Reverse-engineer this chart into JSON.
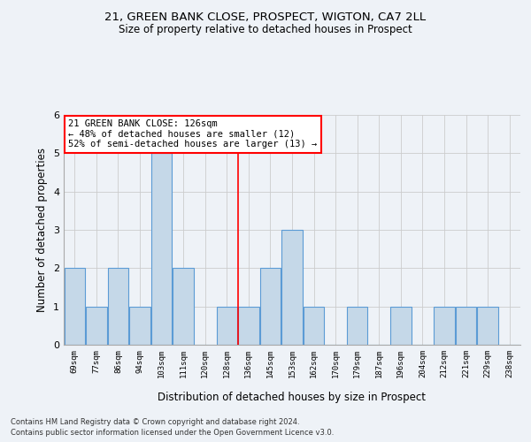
{
  "title1": "21, GREEN BANK CLOSE, PROSPECT, WIGTON, CA7 2LL",
  "title2": "Size of property relative to detached houses in Prospect",
  "xlabel": "Distribution of detached houses by size in Prospect",
  "ylabel": "Number of detached properties",
  "footer1": "Contains HM Land Registry data © Crown copyright and database right 2024.",
  "footer2": "Contains public sector information licensed under the Open Government Licence v3.0.",
  "annotation_title": "21 GREEN BANK CLOSE: 126sqm",
  "annotation_line1": "← 48% of detached houses are smaller (12)",
  "annotation_line2": "52% of semi-detached houses are larger (13) →",
  "bins": [
    "69sqm",
    "77sqm",
    "86sqm",
    "94sqm",
    "103sqm",
    "111sqm",
    "120sqm",
    "128sqm",
    "136sqm",
    "145sqm",
    "153sqm",
    "162sqm",
    "170sqm",
    "179sqm",
    "187sqm",
    "196sqm",
    "204sqm",
    "212sqm",
    "221sqm",
    "229sqm",
    "238sqm"
  ],
  "values": [
    2,
    1,
    2,
    1,
    5,
    2,
    0,
    1,
    1,
    2,
    3,
    1,
    0,
    1,
    0,
    1,
    0,
    1,
    1,
    1,
    0
  ],
  "bar_color": "#c5d8e8",
  "bar_edge_color": "#5b9bd5",
  "vline_x_idx": 7.5,
  "vline_color": "red",
  "annotation_box_color": "white",
  "annotation_box_edge_color": "red",
  "ylim": [
    0,
    6
  ],
  "yticks": [
    0,
    1,
    2,
    3,
    4,
    5,
    6
  ],
  "grid_color": "#cccccc",
  "background_color": "#eef2f7"
}
